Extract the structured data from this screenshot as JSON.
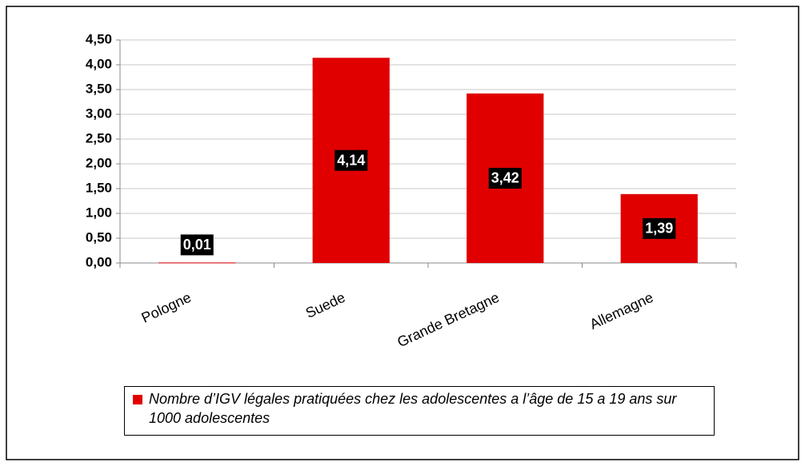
{
  "chart_data": {
    "type": "bar",
    "categories": [
      "Pologne",
      "Suede",
      "Grande Bretagne",
      "Allemagne"
    ],
    "series": [
      {
        "name": "Nombre d’IGV légales pratiquées chez les adolescentes a l’âge de 15 a 19 ans sur 1000 adolescentes",
        "color": "#e00000",
        "values": [
          0.01,
          4.14,
          3.42,
          1.39
        ],
        "value_labels": [
          "0,01",
          "4,14",
          "3,42",
          "1,39"
        ]
      }
    ],
    "ylim": [
      0,
      4.5
    ],
    "yticks": [
      {
        "value": 0,
        "label": "0,00"
      },
      {
        "value": 0.5,
        "label": "0,50"
      },
      {
        "value": 1,
        "label": "1,00"
      },
      {
        "value": 1.5,
        "label": "1,50"
      },
      {
        "value": 2,
        "label": "2,00"
      },
      {
        "value": 2.5,
        "label": "2,50"
      },
      {
        "value": 3,
        "label": "3,00"
      },
      {
        "value": 3.5,
        "label": "3,50"
      },
      {
        "value": 4,
        "label": "4,00"
      },
      {
        "value": 4.5,
        "label": "4,50"
      }
    ],
    "grid": true,
    "legend": "bottom"
  }
}
